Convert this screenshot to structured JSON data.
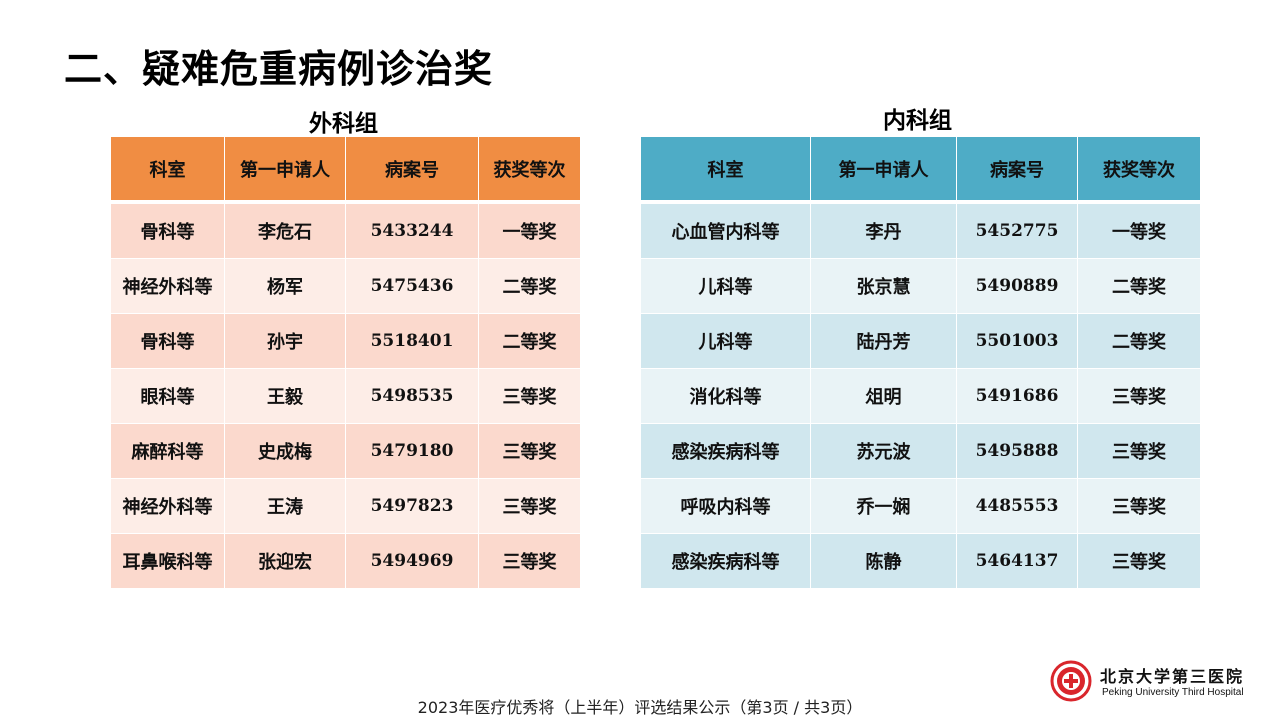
{
  "page": {
    "title": "二、疑难危重病例诊治奖",
    "footer": "2023年医疗优秀将（上半年）评选结果公示（第3页 / 共3页）"
  },
  "surgery": {
    "title": "外科组",
    "headers": [
      "科室",
      "第一申请人",
      "病案号",
      "获奖等次"
    ],
    "rows": [
      [
        "骨科等",
        "李危石",
        "5433244",
        "一等奖"
      ],
      [
        "神经外科等",
        "杨军",
        "5475436",
        "二等奖"
      ],
      [
        "骨科等",
        "孙宇",
        "5518401",
        "二等奖"
      ],
      [
        "眼科等",
        "王毅",
        "5498535",
        "三等奖"
      ],
      [
        "麻醉科等",
        "史成梅",
        "5479180",
        "三等奖"
      ],
      [
        "神经外科等",
        "王涛",
        "5497823",
        "三等奖"
      ],
      [
        "耳鼻喉科等",
        "张迎宏",
        "5494969",
        "三等奖"
      ]
    ]
  },
  "medicine": {
    "title": "内科组",
    "headers": [
      "科室",
      "第一申请人",
      "病案号",
      "获奖等次"
    ],
    "rows": [
      [
        "心血管内科等",
        "李丹",
        "5452775",
        "一等奖"
      ],
      [
        "儿科等",
        "张京慧",
        "5490889",
        "二等奖"
      ],
      [
        "儿科等",
        "陆丹芳",
        "5501003",
        "二等奖"
      ],
      [
        "消化科等",
        "俎明",
        "5491686",
        "三等奖"
      ],
      [
        "感染疾病科等",
        "苏元波",
        "5495888",
        "三等奖"
      ],
      [
        "呼吸内科等",
        "乔一娴",
        "4485553",
        "三等奖"
      ],
      [
        "感染疾病科等",
        "陈静",
        "5464137",
        "三等奖"
      ]
    ]
  },
  "logo": {
    "name_cn": "北京大学第三医院",
    "name_en": "Peking University Third Hospital",
    "icon": "hospital-emblem-icon"
  },
  "colors": {
    "surgery_header": "#f08d43",
    "medicine_header": "#4eacc6"
  }
}
